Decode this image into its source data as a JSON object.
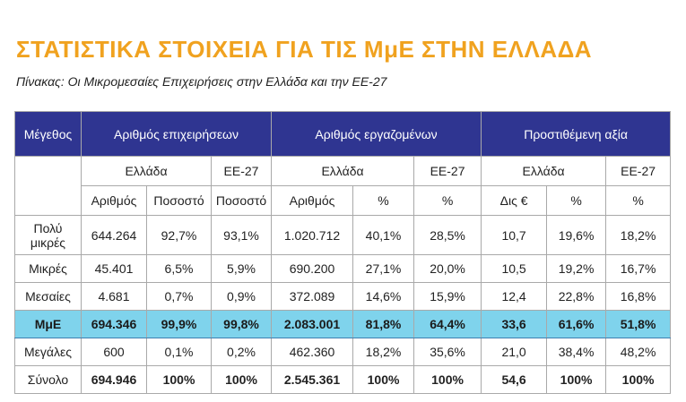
{
  "title": "ΣΤΑΤΙΣΤΙΚΑ ΣΤΟΙΧΕΙΑ ΓΙΑ ΤΙΣ ΜμΕ ΣΤΗΝ ΕΛΛΑΔΑ",
  "caption": "Πίνακας: Οι Μικρομεσαίες Επιχειρήσεις στην Ελλάδα και την ΕΕ-27",
  "headers": {
    "size": "Μέγεθος",
    "groups": [
      "Αριθμός επιχειρήσεων",
      "Αριθμός εργαζομένων",
      "Προστιθέμενη αξία"
    ],
    "regions": {
      "greece": "Ελλάδα",
      "eu": "ΕΕ-27"
    },
    "sub": [
      "Αριθμός",
      "Ποσοστό",
      "Ποσοστό",
      "Αριθμός",
      "%",
      "%",
      "Δις €",
      "%",
      "%"
    ]
  },
  "rows": [
    {
      "label": "Πολύ μικρές",
      "values": [
        "644.264",
        "92,7%",
        "93,1%",
        "1.020.712",
        "40,1%",
        "28,5%",
        "10,7",
        "19,6%",
        "18,2%"
      ]
    },
    {
      "label": "Μικρές",
      "values": [
        "45.401",
        "6,5%",
        "5,9%",
        "690.200",
        "27,1%",
        "20,0%",
        "10,5",
        "19,2%",
        "16,7%"
      ]
    },
    {
      "label": "Μεσαίες",
      "values": [
        "4.681",
        "0,7%",
        "0,9%",
        "372.089",
        "14,6%",
        "15,9%",
        "12,4",
        "22,8%",
        "16,8%"
      ]
    },
    {
      "label": "ΜμΕ",
      "values": [
        "694.346",
        "99,9%",
        "99,8%",
        "2.083.001",
        "81,8%",
        "64,4%",
        "33,6",
        "61,6%",
        "51,8%"
      ]
    },
    {
      "label": "Μεγάλες",
      "values": [
        "600",
        "0,1%",
        "0,2%",
        "462.360",
        "18,2%",
        "35,6%",
        "21,0",
        "38,4%",
        "48,2%"
      ]
    },
    {
      "label": "Σύνολο",
      "values": [
        "694.946",
        "100%",
        "100%",
        "2.545.361",
        "100%",
        "100%",
        "54,6",
        "100%",
        "100%"
      ]
    }
  ],
  "colors": {
    "title": "#f0a21f",
    "header_bg": "#2f3591",
    "highlight_bg": "#7fd3ec"
  }
}
